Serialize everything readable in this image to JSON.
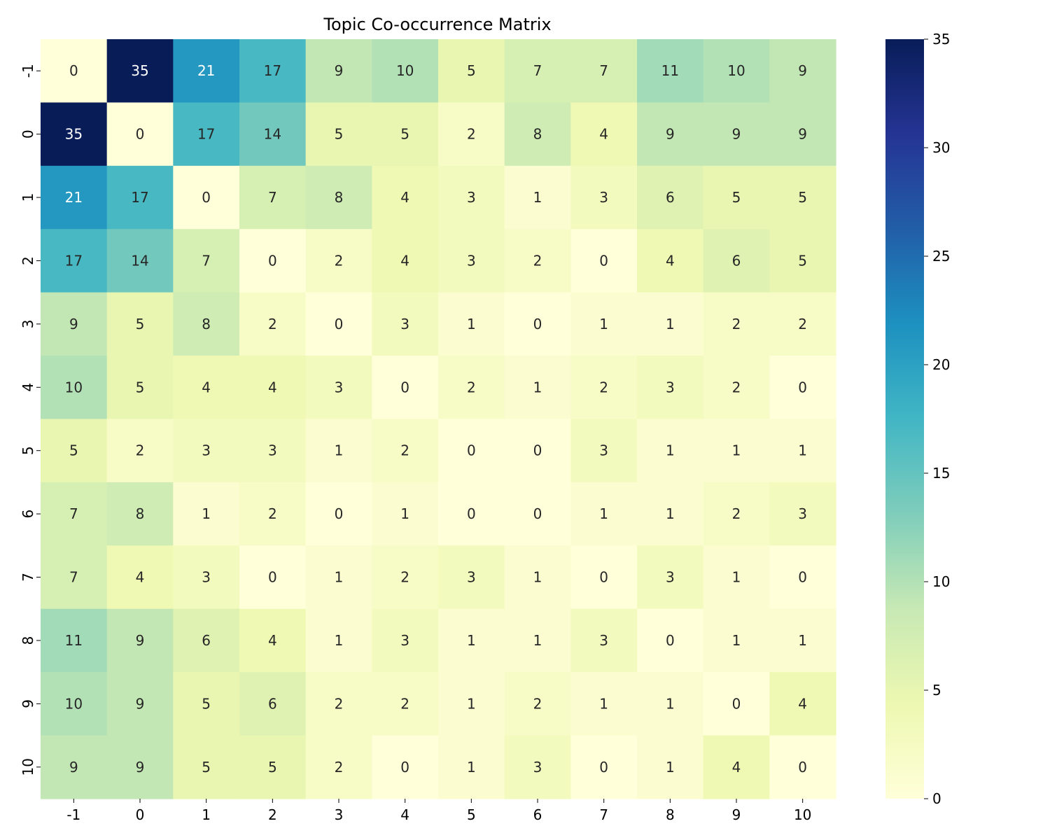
{
  "chart_data": {
    "type": "heatmap",
    "title": "Topic Co-occurrence Matrix",
    "xlabel": "",
    "ylabel": "",
    "x_categories": [
      "-1",
      "0",
      "1",
      "2",
      "3",
      "4",
      "5",
      "6",
      "7",
      "8",
      "9",
      "10"
    ],
    "y_categories": [
      "-1",
      "0",
      "1",
      "2",
      "3",
      "4",
      "5",
      "6",
      "7",
      "8",
      "9",
      "10"
    ],
    "values": [
      [
        0,
        35,
        21,
        17,
        9,
        10,
        5,
        7,
        7,
        11,
        10,
        9
      ],
      [
        35,
        0,
        17,
        14,
        5,
        5,
        2,
        8,
        4,
        9,
        9,
        9
      ],
      [
        21,
        17,
        0,
        7,
        8,
        4,
        3,
        1,
        3,
        6,
        5,
        5
      ],
      [
        17,
        14,
        7,
        0,
        2,
        4,
        3,
        2,
        0,
        4,
        6,
        5
      ],
      [
        9,
        5,
        8,
        2,
        0,
        3,
        1,
        0,
        1,
        1,
        2,
        2
      ],
      [
        10,
        5,
        4,
        4,
        3,
        0,
        2,
        1,
        2,
        3,
        2,
        0
      ],
      [
        5,
        2,
        3,
        3,
        1,
        2,
        0,
        0,
        3,
        1,
        1,
        1
      ],
      [
        7,
        8,
        1,
        2,
        0,
        1,
        0,
        0,
        1,
        1,
        2,
        3
      ],
      [
        7,
        4,
        3,
        0,
        1,
        2,
        3,
        1,
        0,
        3,
        1,
        0
      ],
      [
        11,
        9,
        6,
        4,
        1,
        3,
        1,
        1,
        3,
        0,
        1,
        1
      ],
      [
        10,
        9,
        5,
        6,
        2,
        2,
        1,
        2,
        1,
        1,
        0,
        4
      ],
      [
        9,
        9,
        5,
        5,
        2,
        0,
        1,
        3,
        0,
        1,
        4,
        0
      ]
    ],
    "colormap": "YlGnBu",
    "color_range": [
      0,
      35
    ],
    "colorbar_ticks": [
      "0",
      "5",
      "10",
      "15",
      "20",
      "25",
      "30",
      "35"
    ],
    "annotated": true,
    "legend_placement": "right colorbar"
  }
}
